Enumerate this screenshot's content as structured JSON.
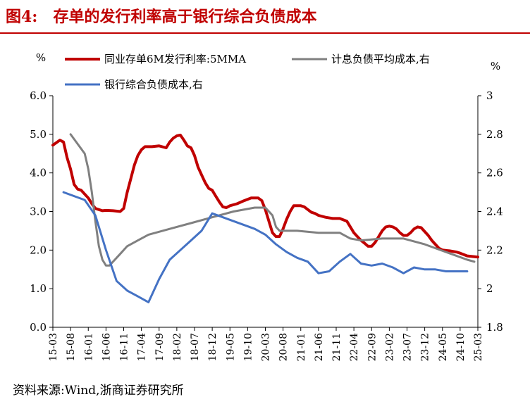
{
  "page": {
    "figure_number": "图4:",
    "title": "存单的发行利率高于银行综合负债成本",
    "source": "资料来源:Wind,浙商证券研究所"
  },
  "chart_data": {
    "type": "line",
    "xlabel": "",
    "y_left": {
      "unit_label": "%",
      "ylim": [
        0,
        6
      ],
      "ticks": [
        "0.0",
        "1.0",
        "2.0",
        "3.0",
        "4.0",
        "5.0",
        "6.0"
      ]
    },
    "y_right": {
      "unit_label": "%",
      "ylim": [
        1.8,
        3.0
      ],
      "ticks": [
        "1.8",
        "2",
        "2.2",
        "2.4",
        "2.6",
        "2.8",
        "3"
      ]
    },
    "x_ticks": [
      "15-03",
      "15-08",
      "16-01",
      "16-06",
      "16-11",
      "17-04",
      "17-09",
      "18-02",
      "18-07",
      "18-12",
      "19-05",
      "19-10",
      "20-03",
      "20-08",
      "21-01",
      "21-06",
      "21-11",
      "22-04",
      "22-09",
      "23-02",
      "23-07",
      "23-12",
      "24-05",
      "24-10",
      "25-03"
    ],
    "grid": false,
    "legend": "top",
    "series": [
      {
        "name": "同业存单6M发行利率:5MMA",
        "axis": "left",
        "color": "#c00000",
        "points": [
          [
            "2015-03",
            4.72
          ],
          [
            "2015-05",
            4.85
          ],
          [
            "2015-06",
            4.8
          ],
          [
            "2015-07",
            4.4
          ],
          [
            "2015-08",
            4.1
          ],
          [
            "2015-09",
            3.7
          ],
          [
            "2015-10",
            3.58
          ],
          [
            "2015-11",
            3.55
          ],
          [
            "2015-12",
            3.45
          ],
          [
            "2016-01",
            3.35
          ],
          [
            "2016-02",
            3.2
          ],
          [
            "2016-03",
            3.08
          ],
          [
            "2016-04",
            3.05
          ],
          [
            "2016-05",
            3.02
          ],
          [
            "2016-06",
            3.03
          ],
          [
            "2016-08",
            3.02
          ],
          [
            "2016-10",
            3.0
          ],
          [
            "2016-11",
            3.08
          ],
          [
            "2016-12",
            3.5
          ],
          [
            "2017-01",
            3.85
          ],
          [
            "2017-02",
            4.2
          ],
          [
            "2017-03",
            4.45
          ],
          [
            "2017-04",
            4.6
          ],
          [
            "2017-05",
            4.68
          ],
          [
            "2017-07",
            4.68
          ],
          [
            "2017-09",
            4.7
          ],
          [
            "2017-11",
            4.65
          ],
          [
            "2017-12",
            4.8
          ],
          [
            "2018-01",
            4.9
          ],
          [
            "2018-02",
            4.96
          ],
          [
            "2018-03",
            4.98
          ],
          [
            "2018-04",
            4.85
          ],
          [
            "2018-05",
            4.7
          ],
          [
            "2018-06",
            4.65
          ],
          [
            "2018-07",
            4.45
          ],
          [
            "2018-08",
            4.15
          ],
          [
            "2018-09",
            3.95
          ],
          [
            "2018-10",
            3.75
          ],
          [
            "2018-11",
            3.6
          ],
          [
            "2018-12",
            3.55
          ],
          [
            "2019-01",
            3.4
          ],
          [
            "2019-02",
            3.25
          ],
          [
            "2019-03",
            3.12
          ],
          [
            "2019-04",
            3.1
          ],
          [
            "2019-05",
            3.15
          ],
          [
            "2019-07",
            3.2
          ],
          [
            "2019-09",
            3.28
          ],
          [
            "2019-11",
            3.35
          ],
          [
            "2020-01",
            3.35
          ],
          [
            "2020-02",
            3.28
          ],
          [
            "2020-03",
            3.05
          ],
          [
            "2020-04",
            2.75
          ],
          [
            "2020-05",
            2.45
          ],
          [
            "2020-06",
            2.35
          ],
          [
            "2020-07",
            2.35
          ],
          [
            "2020-08",
            2.55
          ],
          [
            "2020-09",
            2.8
          ],
          [
            "2020-10",
            3.0
          ],
          [
            "2020-11",
            3.15
          ],
          [
            "2020-12",
            3.15
          ],
          [
            "2021-01",
            3.15
          ],
          [
            "2021-02",
            3.12
          ],
          [
            "2021-03",
            3.05
          ],
          [
            "2021-04",
            2.98
          ],
          [
            "2021-05",
            2.95
          ],
          [
            "2021-06",
            2.9
          ],
          [
            "2021-08",
            2.85
          ],
          [
            "2021-10",
            2.82
          ],
          [
            "2021-12",
            2.82
          ],
          [
            "2022-02",
            2.75
          ],
          [
            "2022-03",
            2.6
          ],
          [
            "2022-04",
            2.45
          ],
          [
            "2022-05",
            2.35
          ],
          [
            "2022-06",
            2.25
          ],
          [
            "2022-07",
            2.18
          ],
          [
            "2022-08",
            2.1
          ],
          [
            "2022-09",
            2.1
          ],
          [
            "2022-10",
            2.2
          ],
          [
            "2022-11",
            2.35
          ],
          [
            "2022-12",
            2.5
          ],
          [
            "2023-01",
            2.6
          ],
          [
            "2023-02",
            2.62
          ],
          [
            "2023-03",
            2.6
          ],
          [
            "2023-04",
            2.55
          ],
          [
            "2023-05",
            2.45
          ],
          [
            "2023-06",
            2.38
          ],
          [
            "2023-07",
            2.38
          ],
          [
            "2023-08",
            2.45
          ],
          [
            "2023-09",
            2.55
          ],
          [
            "2023-10",
            2.6
          ],
          [
            "2023-11",
            2.58
          ],
          [
            "2023-12",
            2.48
          ],
          [
            "2024-01",
            2.38
          ],
          [
            "2024-02",
            2.25
          ],
          [
            "2024-03",
            2.15
          ],
          [
            "2024-04",
            2.05
          ],
          [
            "2024-05",
            2.0
          ],
          [
            "2024-07",
            1.98
          ],
          [
            "2024-09",
            1.95
          ],
          [
            "2024-10",
            1.92
          ],
          [
            "2024-12",
            1.85
          ],
          [
            "2025-03",
            1.82
          ]
        ]
      },
      {
        "name": "计息负债平均成本,右",
        "axis": "right",
        "color": "#808080",
        "points": [
          [
            "2015-08",
            2.8
          ],
          [
            "2015-12",
            2.7
          ],
          [
            "2016-01",
            2.62
          ],
          [
            "2016-02",
            2.5
          ],
          [
            "2016-03",
            2.35
          ],
          [
            "2016-04",
            2.22
          ],
          [
            "2016-05",
            2.15
          ],
          [
            "2016-06",
            2.12
          ],
          [
            "2016-07",
            2.12
          ],
          [
            "2016-08",
            2.14
          ],
          [
            "2016-10",
            2.18
          ],
          [
            "2016-12",
            2.22
          ],
          [
            "2017-03",
            2.25
          ],
          [
            "2017-06",
            2.28
          ],
          [
            "2017-12",
            2.31
          ],
          [
            "2018-06",
            2.34
          ],
          [
            "2018-12",
            2.37
          ],
          [
            "2019-06",
            2.4
          ],
          [
            "2019-12",
            2.42
          ],
          [
            "2020-03",
            2.42
          ],
          [
            "2020-05",
            2.38
          ],
          [
            "2020-06",
            2.32
          ],
          [
            "2020-07",
            2.3
          ],
          [
            "2020-12",
            2.3
          ],
          [
            "2021-06",
            2.29
          ],
          [
            "2021-12",
            2.29
          ],
          [
            "2022-03",
            2.26
          ],
          [
            "2022-06",
            2.25
          ],
          [
            "2022-12",
            2.26
          ],
          [
            "2023-06",
            2.26
          ],
          [
            "2023-12",
            2.23
          ],
          [
            "2024-06",
            2.19
          ],
          [
            "2024-12",
            2.15
          ],
          [
            "2025-02",
            2.14
          ]
        ]
      },
      {
        "name": "银行综合负债成本,右",
        "axis": "right",
        "color": "#4472c4",
        "points": [
          [
            "2015-06",
            2.5
          ],
          [
            "2015-12",
            2.46
          ],
          [
            "2016-03",
            2.38
          ],
          [
            "2016-06",
            2.2
          ],
          [
            "2016-09",
            2.04
          ],
          [
            "2016-12",
            1.99
          ],
          [
            "2017-03",
            1.96
          ],
          [
            "2017-06",
            1.93
          ],
          [
            "2017-09",
            2.05
          ],
          [
            "2017-12",
            2.15
          ],
          [
            "2018-03",
            2.2
          ],
          [
            "2018-06",
            2.25
          ],
          [
            "2018-09",
            2.3
          ],
          [
            "2018-12",
            2.39
          ],
          [
            "2019-03",
            2.37
          ],
          [
            "2019-06",
            2.35
          ],
          [
            "2019-09",
            2.33
          ],
          [
            "2019-12",
            2.31
          ],
          [
            "2020-03",
            2.28
          ],
          [
            "2020-06",
            2.23
          ],
          [
            "2020-09",
            2.19
          ],
          [
            "2020-12",
            2.16
          ],
          [
            "2021-03",
            2.14
          ],
          [
            "2021-06",
            2.08
          ],
          [
            "2021-09",
            2.09
          ],
          [
            "2021-12",
            2.14
          ],
          [
            "2022-03",
            2.18
          ],
          [
            "2022-06",
            2.13
          ],
          [
            "2022-09",
            2.12
          ],
          [
            "2022-12",
            2.13
          ],
          [
            "2023-03",
            2.11
          ],
          [
            "2023-06",
            2.08
          ],
          [
            "2023-09",
            2.11
          ],
          [
            "2023-12",
            2.1
          ],
          [
            "2024-03",
            2.1
          ],
          [
            "2024-06",
            2.09
          ],
          [
            "2024-09",
            2.09
          ],
          [
            "2024-12",
            2.09
          ]
        ]
      }
    ]
  }
}
